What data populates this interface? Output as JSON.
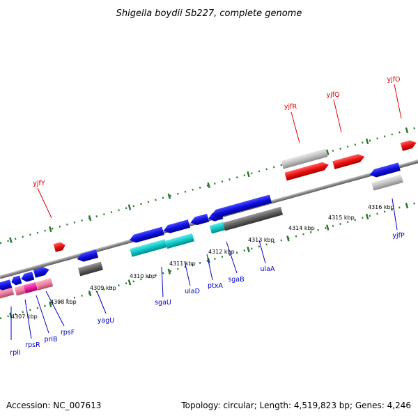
{
  "title": "Shigella boydii Sb227, complete genome",
  "footer": {
    "accession": "Accession: NC_007613",
    "summary": "Topology: circular; Length: 4,519,823 bp; Genes: 4,246"
  },
  "colors": {
    "forward": "#1010e0",
    "cyan": "#10c8c8",
    "gray_dark": "#606060",
    "gray_light": "#c0c0c0",
    "red": "#f01010",
    "pink": "#f080a0",
    "magenta": "#f020a0",
    "tick": "#2a7a2a",
    "axis": "#888888"
  },
  "kbp_labels": [
    "4307 kbp",
    "4308 kbp",
    "4309 kbp",
    "4310 kbp",
    "4311 kbp",
    "4312 kbp",
    "4313 kbp",
    "4314 kbp",
    "4315 kbp",
    "4316 kbp"
  ],
  "genes": [
    {
      "name": "rplI",
      "color": "blue"
    },
    {
      "name": "rpsR",
      "color": "blue"
    },
    {
      "name": "priB",
      "color": "blue"
    },
    {
      "name": "rpsF",
      "color": "blue"
    },
    {
      "name": "yagU",
      "color": "blue"
    },
    {
      "name": "sgaU",
      "color": "blue"
    },
    {
      "name": "ulaD",
      "color": "blue"
    },
    {
      "name": "ptxA",
      "color": "blue"
    },
    {
      "name": "sgaB",
      "color": "blue"
    },
    {
      "name": "ulaA",
      "color": "blue"
    },
    {
      "name": "yjfP",
      "color": "blue"
    },
    {
      "name": "yjfY",
      "color": "red"
    },
    {
      "name": "yjfR",
      "color": "red"
    },
    {
      "name": "yjfQ",
      "color": "red"
    },
    {
      "name": "yjfO",
      "color": "red"
    }
  ]
}
